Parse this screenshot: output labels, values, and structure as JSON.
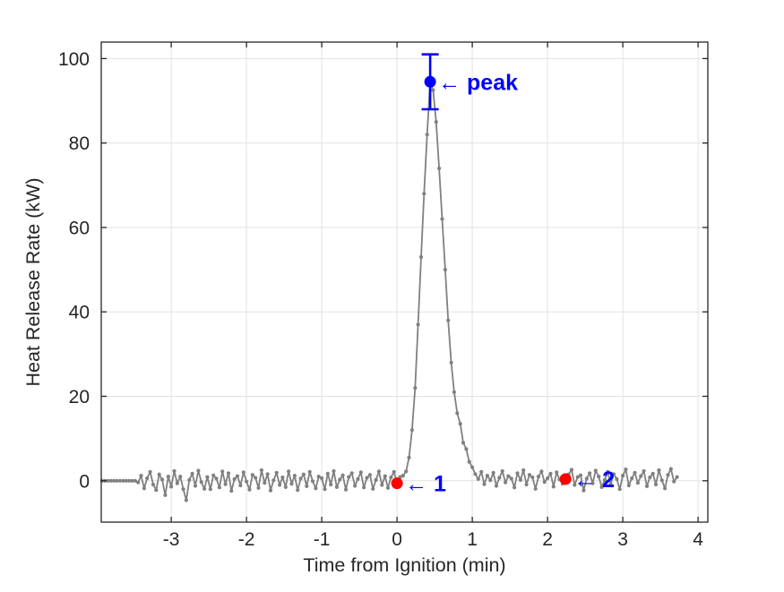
{
  "figure": {
    "background": "#ffffff"
  },
  "chart_data": {
    "type": "line",
    "title": "",
    "xlabel": "Time from Ignition (min)",
    "ylabel": "Heat Release Rate (kW)",
    "xlim": [
      -3.93,
      4.13
    ],
    "ylim": [
      -9.8,
      103.9
    ],
    "grid": true,
    "grid_color": "#e2e2e2",
    "axis_color": "#262626",
    "x_ticks": {
      "values": [
        -3,
        -2,
        -1,
        0,
        1,
        2,
        3,
        4
      ],
      "labels": [
        "-3",
        "-2",
        "-1",
        "0",
        "1",
        "2",
        "3",
        "4"
      ]
    },
    "y_ticks": {
      "values": [
        0,
        20,
        40,
        60,
        80,
        100
      ],
      "labels": [
        "0",
        "20",
        "40",
        "60",
        "80",
        "100"
      ]
    },
    "series": [
      {
        "name": "heat-release-rate",
        "color": "#808080",
        "line_width": 1.8,
        "marker": "dot",
        "marker_radius": 2.1,
        "t0": -3.92,
        "dt": 0.04,
        "y": [
          0,
          0,
          0,
          0,
          0,
          0,
          0,
          0,
          0,
          0,
          0,
          0,
          -0.4,
          1.2,
          -1.8,
          0.6,
          2.1,
          -0.9,
          -2.2,
          1.5,
          0.3,
          -3.4,
          1.0,
          -1.4,
          2.3,
          -0.6,
          1.0,
          -2.0,
          -4.6,
          0.2,
          1.7,
          -1.2,
          2.4,
          -0.3,
          -1.9,
          0.9,
          -2.0,
          1.3,
          0.5,
          -1.6,
          2.2,
          -0.8,
          1.8,
          -2.4,
          0.4,
          1.1,
          -1.1,
          2.0,
          -0.2,
          -2.1,
          1.4,
          0.7,
          -1.7,
          2.5,
          -0.5,
          1.6,
          -2.3,
          0.1,
          1.9,
          -1.0,
          0.8,
          -1.5,
          2.2,
          -0.7,
          1.2,
          -2.2,
          0.5,
          1.5,
          -1.3,
          2.1,
          -0.1,
          -1.8,
          1.0,
          0.6,
          -2.0,
          1.7,
          -0.9,
          2.3,
          -1.5,
          0.3,
          1.3,
          -2.1,
          0.9,
          1.8,
          -1.2,
          0.4,
          2.0,
          -1.6,
          0.7,
          1.4,
          -1.9,
          0.2,
          2.2,
          -1.0,
          1.1,
          -1.7,
          0.8,
          2.1,
          -0.6,
          0.9,
          1.2,
          2.2,
          5.5,
          12,
          22,
          37,
          53,
          68,
          82,
          94.5,
          92.5,
          85,
          74,
          62,
          50,
          38,
          28,
          21,
          16,
          13.5,
          9,
          7.5,
          4.5,
          3.2,
          1.6,
          0.4,
          2.1,
          -0.8,
          1.2,
          0.1,
          1.9,
          -1.2,
          0.7,
          2.3,
          -0.4,
          1.1,
          0.5,
          -1.6,
          1.8,
          0.2,
          2.5,
          -0.9,
          1.4,
          0.8,
          -1.9,
          1.0,
          2.2,
          -0.3,
          0.6,
          1.7,
          -1.4,
          2.0,
          0.3,
          -0.7,
          0.4,
          1.5,
          2.6,
          -1.0,
          0.9,
          1.3,
          -2.3,
          0.5,
          1.8,
          -0.6,
          2.4,
          1.0,
          -1.5,
          0.2,
          2.1,
          -0.8,
          1.6,
          0.4,
          -2.0,
          1.2,
          2.7,
          -1.1,
          0.6,
          1.9,
          -0.5,
          1.1,
          2.3,
          -1.3,
          0.8,
          1.7,
          -0.9,
          2.5,
          0.1,
          -1.8,
          1.4,
          2.8,
          -0.2,
          0.9
        ]
      }
    ],
    "highlight_points": [
      {
        "id": "peak",
        "x": 0.44,
        "y": 94.5,
        "error_bar": 6.5,
        "marker_color": "#0000ff",
        "marker_radius": 6.5,
        "label": "← peak",
        "label_color": "#0000ff"
      },
      {
        "id": "point-1",
        "x": 0.0,
        "y": -0.6,
        "error_bar": 0,
        "marker_color": "#ff0000",
        "marker_radius": 6.5,
        "label": "← 1",
        "label_color": "#0000ff"
      },
      {
        "id": "point-2",
        "x": 2.24,
        "y": 0.4,
        "error_bar": 0,
        "marker_color": "#ff0000",
        "marker_radius": 6.5,
        "label": "← 2",
        "label_color": "#0000ff"
      }
    ]
  }
}
